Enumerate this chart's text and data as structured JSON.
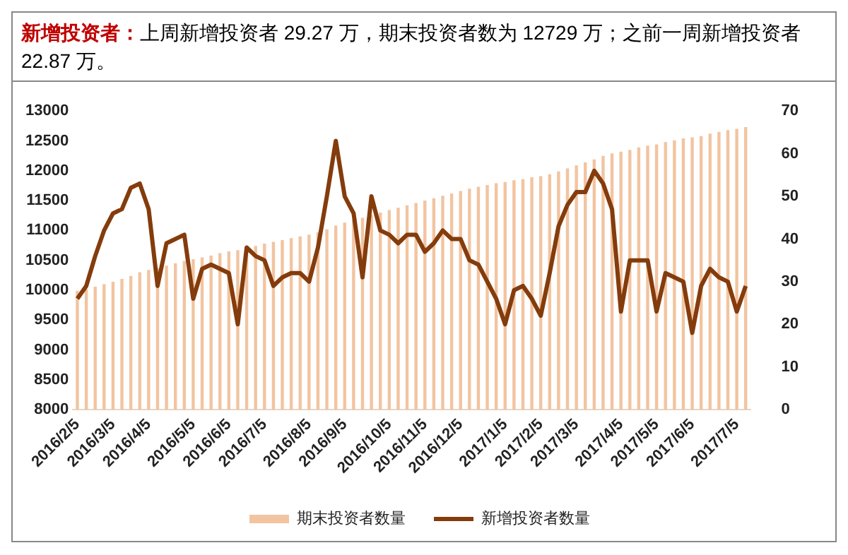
{
  "chart_data": {
    "type": "bar",
    "title": "新增投资者：",
    "subtitle": "上周新增投资者 29.27 万，期末投资者数为 12729 万；之前一周新增投资者 22.87 万。",
    "categories": [
      "2016/2/5",
      null,
      null,
      null,
      "2016/3/5",
      null,
      null,
      null,
      "2016/4/5",
      null,
      null,
      null,
      null,
      "2016/5/5",
      null,
      null,
      null,
      "2016/6/5",
      null,
      null,
      null,
      "2016/7/5",
      null,
      null,
      null,
      null,
      "2016/8/5",
      null,
      null,
      null,
      "2016/9/5",
      null,
      null,
      null,
      null,
      "2016/10/5",
      null,
      null,
      null,
      "2016/11/5",
      null,
      null,
      null,
      "2016/12/5",
      null,
      null,
      null,
      null,
      "2017/1/5",
      null,
      null,
      null,
      "2017/2/5",
      null,
      null,
      null,
      "2017/3/5",
      null,
      null,
      null,
      null,
      "2017/4/5",
      null,
      null,
      null,
      "2017/5/5",
      null,
      null,
      null,
      "2017/6/5",
      null,
      null,
      null,
      null,
      "2017/7/5",
      null
    ],
    "series": [
      {
        "name": "期末投资者数量",
        "color": "#f2c4a0",
        "values": [
          9990,
          10020,
          10060,
          10100,
          10140,
          10190,
          10240,
          10300,
          10340,
          10370,
          10410,
          10450,
          10490,
          10520,
          10550,
          10580,
          10620,
          10650,
          10670,
          10710,
          10740,
          10780,
          10810,
          10840,
          10870,
          10900,
          10930,
          10970,
          11020,
          11080,
          11130,
          11180,
          11210,
          11260,
          11300,
          11340,
          11380,
          11420,
          11460,
          11500,
          11540,
          11580,
          11620,
          11660,
          11700,
          11730,
          11760,
          11790,
          11810,
          11840,
          11860,
          11890,
          11910,
          11940,
          11990,
          12040,
          12090,
          12140,
          12190,
          12250,
          12290,
          12320,
          12350,
          12390,
          12420,
          12440,
          12480,
          12510,
          12540,
          12560,
          12580,
          12620,
          12650,
          12680,
          12700,
          12730
        ]
      },
      {
        "name": "新增投资者数量",
        "type": "line",
        "axis": "y2",
        "color": "#843c0c",
        "values": [
          26,
          29,
          36,
          42,
          46,
          47,
          52,
          53,
          47,
          29,
          39,
          40,
          41,
          26,
          33,
          34,
          33,
          32,
          20,
          38,
          36,
          35,
          29,
          31,
          32,
          32,
          30,
          38,
          50,
          63,
          50,
          46,
          31,
          50,
          42,
          41,
          39,
          41,
          41,
          37,
          39,
          42,
          40,
          40,
          35,
          34,
          30,
          26,
          20,
          28,
          29,
          26,
          22,
          32,
          43,
          48,
          51,
          51,
          56,
          53,
          47,
          23,
          35,
          35,
          35,
          23,
          32,
          31,
          30,
          18,
          29,
          33,
          31,
          30,
          23,
          29
        ]
      }
    ],
    "ylim": [
      8000,
      13000
    ],
    "yticks": [
      8000,
      8500,
      9000,
      9500,
      10000,
      10500,
      11000,
      11500,
      12000,
      12500,
      13000
    ],
    "y2lim": [
      0,
      70
    ],
    "y2ticks": [
      0,
      10,
      20,
      30,
      40,
      50,
      60,
      70
    ],
    "grid": false,
    "legend": "bottom",
    "marker": "none",
    "line_style": "solid"
  }
}
